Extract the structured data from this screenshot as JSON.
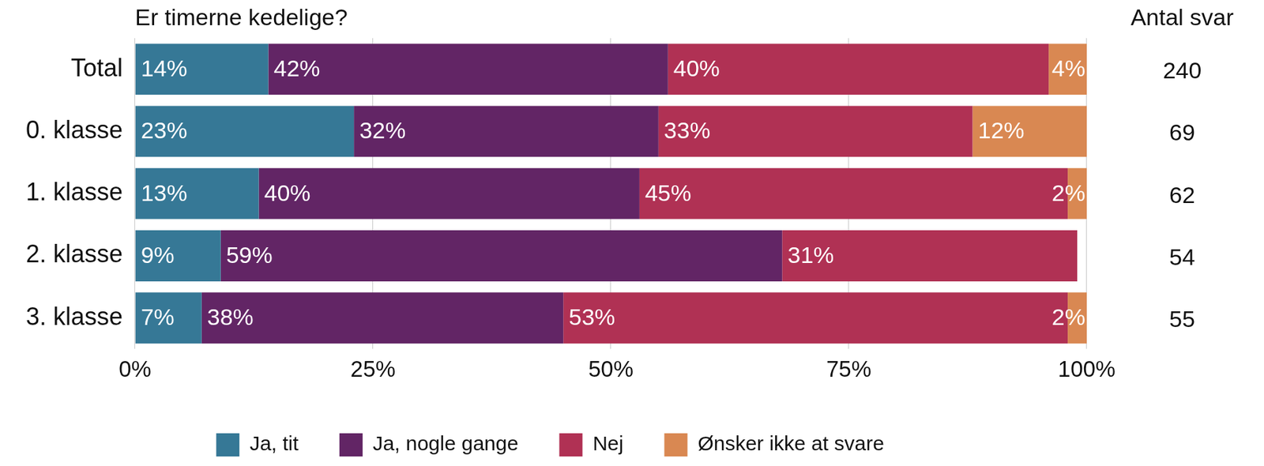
{
  "chart_data": {
    "type": "bar",
    "orientation": "horizontal",
    "stacked": true,
    "title": "Er timerne kedelige?",
    "categories": [
      "Total",
      "0. klasse",
      "1. klasse",
      "2. klasse",
      "3. klasse"
    ],
    "series": [
      {
        "name": "Ja, tit",
        "color": "#367896",
        "values": [
          14,
          23,
          13,
          9,
          7
        ],
        "value_labels": [
          "14%",
          "23%",
          "13%",
          "9%",
          "7%"
        ]
      },
      {
        "name": "Ja, nogle gange",
        "color": "#622565",
        "values": [
          42,
          32,
          40,
          59,
          38
        ],
        "value_labels": [
          "42%",
          "32%",
          "40%",
          "59%",
          "38%"
        ]
      },
      {
        "name": "Nej",
        "color": "#b03154",
        "values": [
          40,
          33,
          45,
          31,
          53
        ],
        "value_labels": [
          "40%",
          "33%",
          "45%",
          "31%",
          "53%"
        ]
      },
      {
        "name": "Ønsker ikke at svare",
        "color": "#d98852",
        "values": [
          4,
          12,
          2,
          null,
          2
        ],
        "value_labels": [
          "4%",
          "12%",
          "2%",
          null,
          "2%"
        ]
      }
    ],
    "xlim": [
      0,
      100
    ],
    "xticks": [
      {
        "value": 0,
        "label": "0%"
      },
      {
        "value": 25,
        "label": "25%"
      },
      {
        "value": 50,
        "label": "50%"
      },
      {
        "value": 75,
        "label": "75%"
      },
      {
        "value": 100,
        "label": "100%"
      }
    ],
    "grid": true,
    "legend": "bottom",
    "data_labels": true,
    "counts_title": "Antal svar",
    "counts": [
      240,
      69,
      62,
      54,
      55
    ]
  }
}
